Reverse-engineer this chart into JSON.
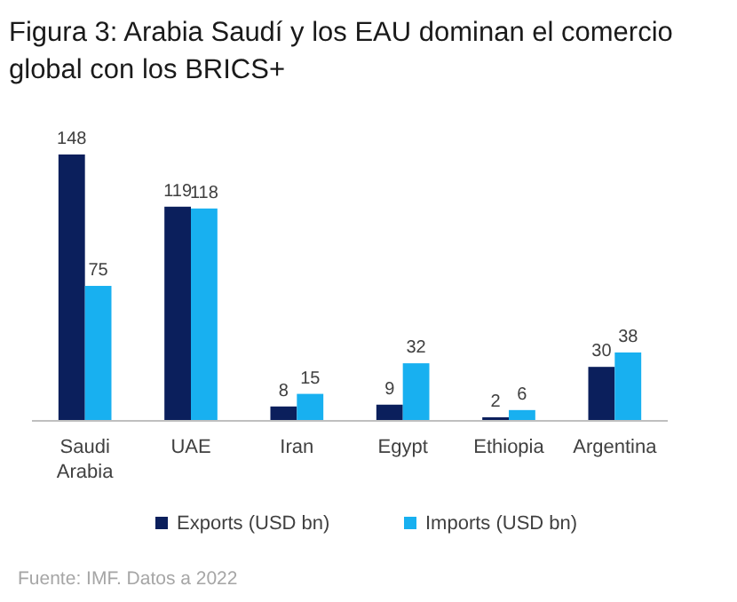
{
  "chart_data": {
    "type": "bar",
    "title": "Figura 3: Arabia Saudí y los EAU dominan el comercio global con los BRICS+",
    "categories": [
      "Saudi Arabia",
      "UAE",
      "Iran",
      "Egypt",
      "Ethiopia",
      "Argentina"
    ],
    "series": [
      {
        "name": "Exports (USD bn)",
        "color": "#0b1f5c",
        "values": [
          148,
          119,
          8,
          9,
          2,
          30
        ]
      },
      {
        "name": "Imports (USD bn)",
        "color": "#18b0f0",
        "values": [
          75,
          118,
          15,
          32,
          6,
          38
        ]
      }
    ],
    "data_labels": true,
    "legend": "bottom",
    "annotations": [
      "Fuente: IMF. Datos a 2022"
    ]
  }
}
